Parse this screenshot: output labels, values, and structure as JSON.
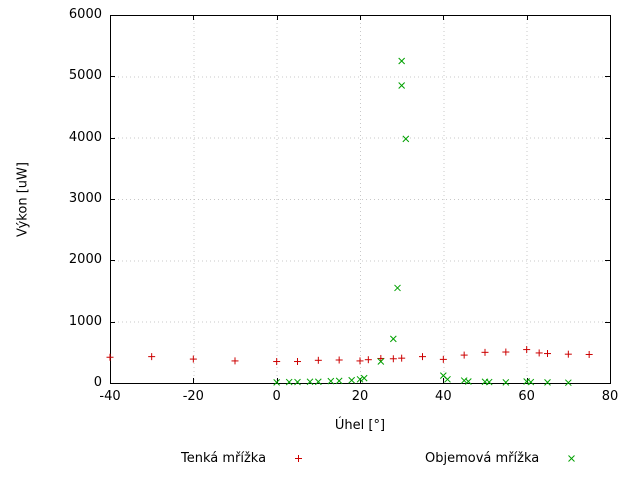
{
  "chart_data": {
    "type": "scatter",
    "title": "",
    "xlabel": "Úhel [°]",
    "ylabel": "Výkon [uW]",
    "xlim": [
      -40,
      80
    ],
    "ylim": [
      0,
      6000
    ],
    "xticks": [
      -40,
      -20,
      0,
      20,
      40,
      60,
      80
    ],
    "yticks": [
      0,
      1000,
      2000,
      3000,
      4000,
      5000,
      6000
    ],
    "grid": true,
    "legend_position": "below-plot",
    "background": "#ffffff",
    "border_color": "#000000",
    "grid_color": "#c8c8c8",
    "series": [
      {
        "name": "Tenká mřížka",
        "marker": "plus",
        "color": "#cc0000",
        "points": [
          [
            -40,
            420
          ],
          [
            -30,
            430
          ],
          [
            -20,
            390
          ],
          [
            -10,
            360
          ],
          [
            0,
            350
          ],
          [
            5,
            350
          ],
          [
            10,
            370
          ],
          [
            15,
            375
          ],
          [
            20,
            360
          ],
          [
            22,
            380
          ],
          [
            25,
            400
          ],
          [
            28,
            395
          ],
          [
            30,
            405
          ],
          [
            35,
            430
          ],
          [
            40,
            385
          ],
          [
            45,
            455
          ],
          [
            50,
            500
          ],
          [
            55,
            505
          ],
          [
            60,
            545
          ],
          [
            63,
            490
          ],
          [
            65,
            480
          ],
          [
            70,
            470
          ],
          [
            75,
            465
          ]
        ]
      },
      {
        "name": "Objemová mřížka",
        "marker": "cross",
        "color": "#00a000",
        "points": [
          [
            0,
            10
          ],
          [
            3,
            15
          ],
          [
            5,
            15
          ],
          [
            8,
            20
          ],
          [
            10,
            20
          ],
          [
            13,
            30
          ],
          [
            15,
            35
          ],
          [
            18,
            45
          ],
          [
            20,
            60
          ],
          [
            21,
            80
          ],
          [
            25,
            350
          ],
          [
            28,
            720
          ],
          [
            29,
            1550
          ],
          [
            30,
            5250
          ],
          [
            30,
            4850
          ],
          [
            31,
            3980
          ],
          [
            40,
            120
          ],
          [
            41,
            60
          ],
          [
            45,
            40
          ],
          [
            46,
            25
          ],
          [
            50,
            20
          ],
          [
            51,
            15
          ],
          [
            55,
            10
          ],
          [
            60,
            25
          ],
          [
            61,
            15
          ],
          [
            65,
            10
          ],
          [
            70,
            5
          ]
        ]
      }
    ]
  },
  "legend": {
    "items": [
      {
        "label": "Tenká mřížka",
        "marker": "plus",
        "color": "#cc0000"
      },
      {
        "label": "Objemová mřížka",
        "marker": "cross",
        "color": "#00a000"
      }
    ]
  }
}
